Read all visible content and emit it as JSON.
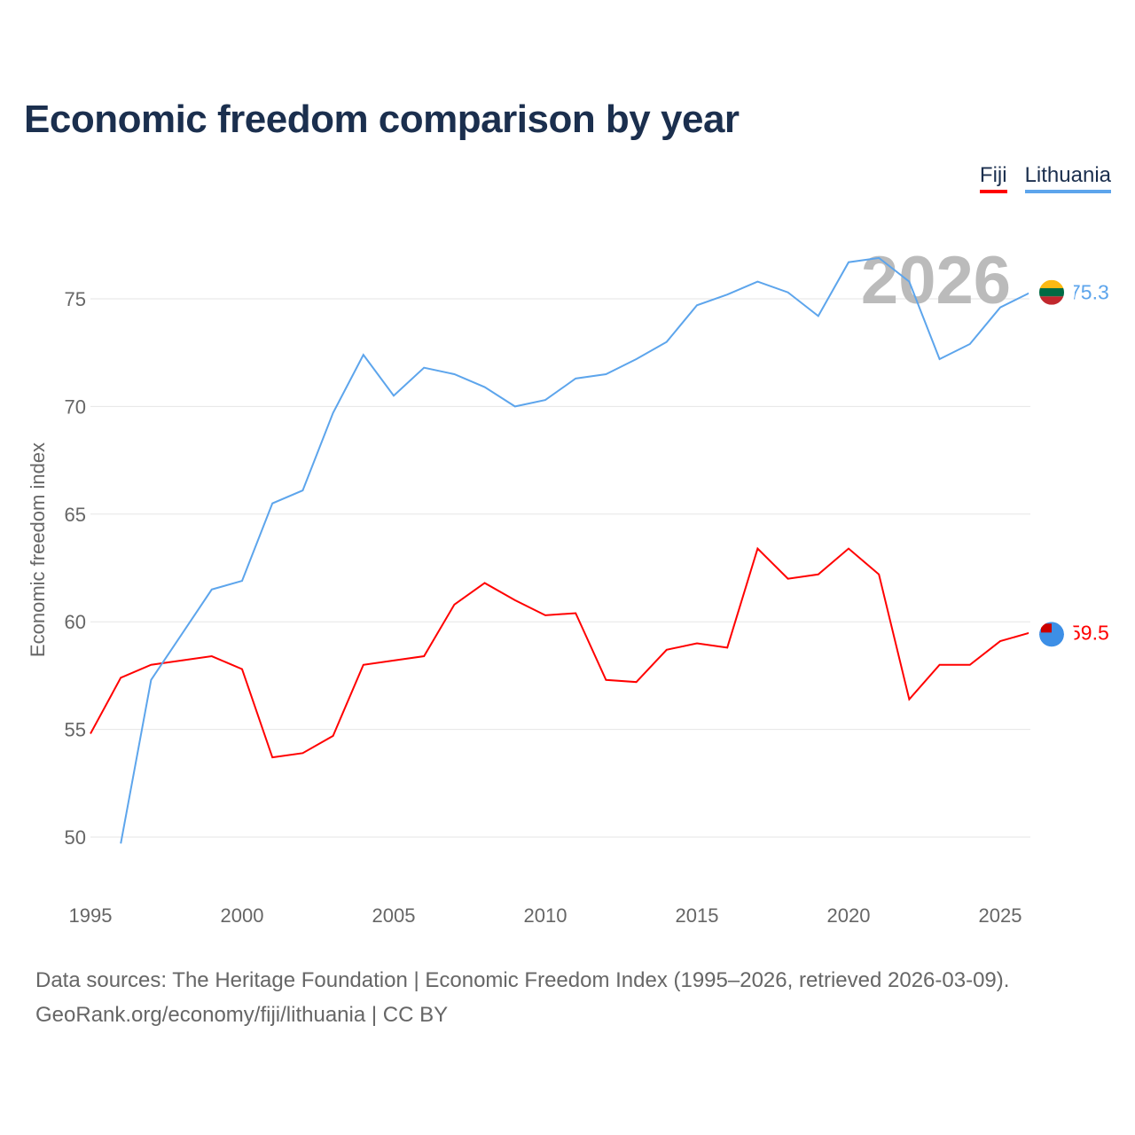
{
  "chart_data": {
    "type": "line",
    "title": "Economic freedom comparison by year",
    "ylabel": "Economic freedom index",
    "xlabel": "",
    "xlim": [
      1995,
      2026
    ],
    "ylim": [
      47.5,
      78
    ],
    "x_ticks": [
      1995,
      2000,
      2005,
      2010,
      2015,
      2020,
      2025
    ],
    "y_ticks": [
      50,
      55,
      60,
      65,
      70,
      75
    ],
    "grid": true,
    "legend_placement": "top-right",
    "year_label": "2026",
    "series": [
      {
        "name": "Fiji",
        "color": "#ff0000",
        "end_label": "59.5",
        "x": [
          1995,
          1996,
          1997,
          1998,
          1999,
          2000,
          2001,
          2002,
          2003,
          2004,
          2005,
          2006,
          2007,
          2008,
          2009,
          2010,
          2011,
          2012,
          2013,
          2014,
          2015,
          2016,
          2017,
          2018,
          2019,
          2020,
          2021,
          2022,
          2023,
          2024,
          2025,
          2026
        ],
        "values": [
          54.8,
          57.4,
          58.0,
          58.2,
          58.4,
          57.8,
          53.7,
          53.9,
          54.7,
          58.0,
          58.2,
          58.4,
          60.8,
          61.8,
          61.0,
          60.3,
          60.4,
          57.3,
          57.2,
          58.7,
          59.0,
          58.8,
          63.4,
          62.0,
          62.2,
          63.4,
          62.2,
          56.4,
          58.0,
          58.0,
          59.1,
          59.5
        ]
      },
      {
        "name": "Lithuania",
        "color": "#5da5ec",
        "end_label": "75.3",
        "x": [
          1996,
          1997,
          1998,
          1999,
          2000,
          2001,
          2002,
          2003,
          2004,
          2005,
          2006,
          2007,
          2008,
          2009,
          2010,
          2011,
          2012,
          2013,
          2014,
          2015,
          2016,
          2017,
          2018,
          2019,
          2020,
          2021,
          2022,
          2023,
          2024,
          2025,
          2026
        ],
        "values": [
          49.7,
          57.3,
          59.4,
          61.5,
          61.9,
          65.5,
          66.1,
          69.7,
          72.4,
          70.5,
          71.8,
          71.5,
          70.9,
          70.0,
          70.3,
          71.3,
          71.5,
          72.2,
          73.0,
          74.7,
          75.2,
          75.8,
          75.3,
          74.2,
          76.7,
          76.9,
          75.8,
          72.2,
          72.9,
          74.6,
          75.3
        ]
      }
    ]
  },
  "footer": {
    "line1": "Data sources: The Heritage Foundation | Economic Freedom Index (1995–2026, retrieved 2026-03-09).",
    "line2": "GeoRank.org/economy/fiji/lithuania | CC BY"
  }
}
